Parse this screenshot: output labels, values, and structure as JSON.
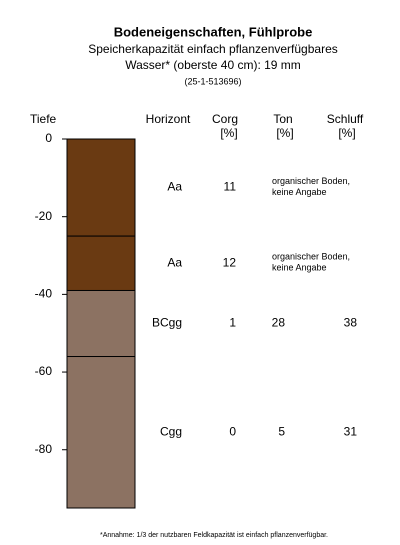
{
  "chart_data": {
    "type": "soil-profile",
    "title": "Bodeneigenschaften, Fühlprobe",
    "subtitle": [
      "Speicherkapazität einfach pflanzenverfügbares",
      "Wasser* (oberste 40 cm): 19 mm",
      "(25-1-513696)"
    ],
    "y_label": "Tiefe",
    "ylim": [
      -95,
      0
    ],
    "yticks": [
      0,
      -20,
      -40,
      -60,
      -80
    ],
    "columns": {
      "horizon": "Horizont",
      "corg": [
        "Corg",
        "[%]"
      ],
      "ton": [
        "Ton",
        "[%]"
      ],
      "schluff": [
        "Schluff",
        "[%]"
      ]
    },
    "layers": [
      {
        "top": 0,
        "bottom": -25,
        "horizon": "Aa",
        "corg": 11,
        "note": [
          "organischer Boden,",
          "keine Angabe"
        ],
        "color": "#6a3a12"
      },
      {
        "top": -25,
        "bottom": -39,
        "horizon": "Aa",
        "corg": 12,
        "note": [
          "organischer Boden,",
          "keine Angabe"
        ],
        "color": "#6a3a12"
      },
      {
        "top": -39,
        "bottom": -56,
        "horizon": "BCgg",
        "corg": 1,
        "ton": 28,
        "schluff": 38,
        "color": "#8c7262"
      },
      {
        "top": -56,
        "bottom": -95,
        "horizon": "Cgg",
        "corg": 0,
        "ton": 5,
        "schluff": 31,
        "color": "#8c7262"
      }
    ],
    "footnote": "*Annahme: 1/3 der nutzbaren Feldkapazität ist einfach pflanzenverfügbar."
  }
}
